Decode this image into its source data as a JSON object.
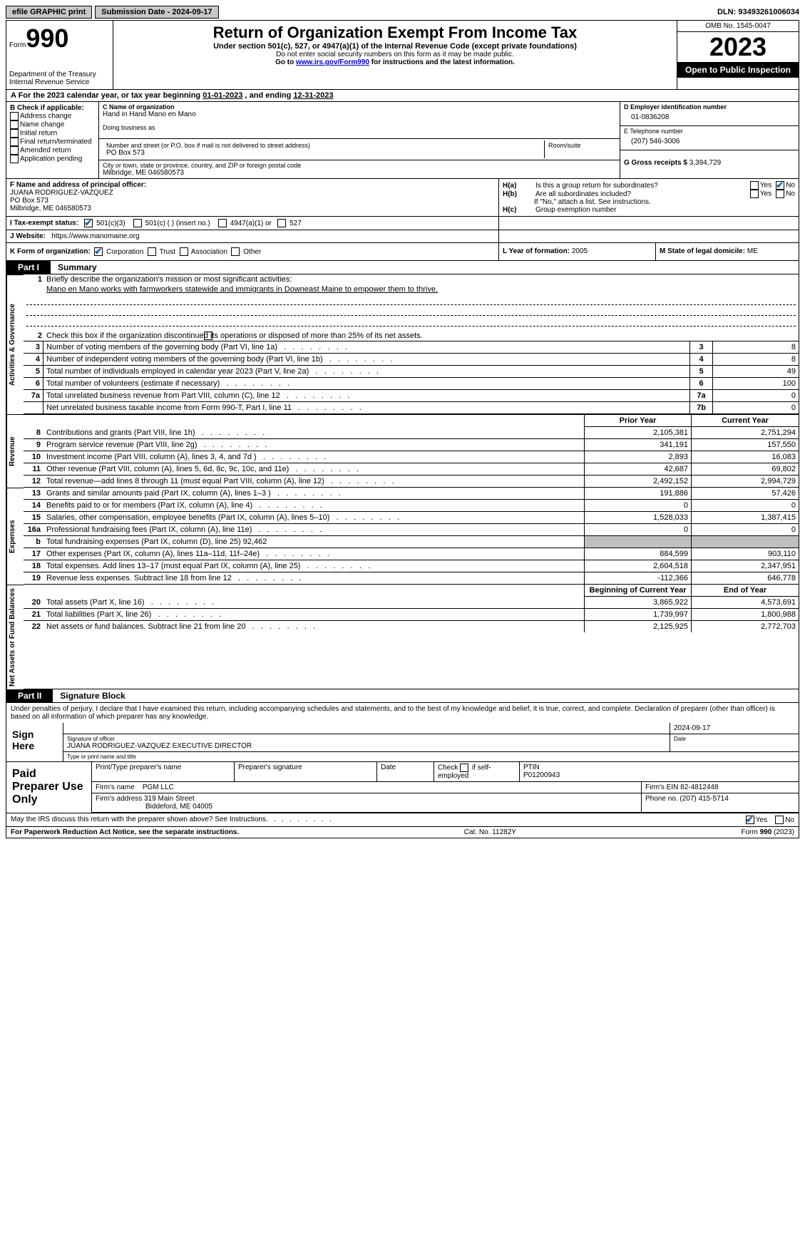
{
  "topbar": {
    "efile": "efile GRAPHIC print",
    "submission_label": "Submission Date - ",
    "submission_date": "2024-09-17",
    "dln_label": "DLN: ",
    "dln": "93493261006034"
  },
  "header": {
    "form_word": "Form",
    "form_number": "990",
    "dept": "Department of the Treasury",
    "irs": "Internal Revenue Service",
    "title": "Return of Organization Exempt From Income Tax",
    "subtitle": "Under section 501(c), 527, or 4947(a)(1) of the Internal Revenue Code (except private foundations)",
    "warn": "Do not enter social security numbers on this form as it may be made public.",
    "goto": "Go to ",
    "url": "www.irs.gov/Form990",
    "goto_rest": " for instructions and the latest information.",
    "omb": "OMB No. 1545-0047",
    "year": "2023",
    "inspection": "Open to Public Inspection"
  },
  "row_a": {
    "label": "A  For the 2023 calendar year, or tax year beginning ",
    "begin": "01-01-2023",
    "mid": "   , and ending ",
    "end": "12-31-2023"
  },
  "boxB": {
    "header": "B Check if applicable:",
    "items": [
      "Address change",
      "Name change",
      "Initial return",
      "Final return/terminated",
      "Amended return",
      "Application pending"
    ]
  },
  "boxC": {
    "name_label": "C Name of organization",
    "name": "Hand in Hand Mano en Mano",
    "dba_label": "Doing business as",
    "addr_label": "Number and street (or P.O. box if mail is not delivered to street address)",
    "addr": "PO Box 573",
    "room_label": "Room/suite",
    "city_label": "City or town, state or province, country, and ZIP or foreign postal code",
    "city": "Milbridge, ME  046580573"
  },
  "boxD": {
    "ein_label": "D Employer identification number",
    "ein": "01-0836208",
    "tel_label": "E Telephone number",
    "tel": "(207) 546-3006",
    "gross_label": "G Gross receipts $ ",
    "gross": "3,394,729"
  },
  "boxF": {
    "label": "F  Name and address of principal officer:",
    "name": "JUANA RODRIGUEZ-VAZQUEZ",
    "addr1": "PO Box 573",
    "addr2": "Milbridge, ME  046580573"
  },
  "boxH": {
    "a_label": "H(a)",
    "a_text": "Is this a group return for subordinates?",
    "b_label": "H(b)",
    "b_text": "Are all subordinates included?",
    "b_note": "If \"No,\" attach a list. See instructions.",
    "c_label": "H(c)",
    "c_text": "Group exemption number",
    "yes": "Yes",
    "no": "No"
  },
  "boxI": {
    "label": "I     Tax-exempt status:",
    "o1": "501(c)(3)",
    "o2": "501(c) (  ) (insert no.)",
    "o3": "4947(a)(1) or",
    "o4": "527"
  },
  "boxJ": {
    "label": "J    Website:",
    "url": "https://www.manomaine.org"
  },
  "boxK": {
    "label": "K Form of organization:",
    "o1": "Corporation",
    "o2": "Trust",
    "o3": "Association",
    "o4": "Other"
  },
  "boxL": {
    "label": "L Year of formation: ",
    "value": "2005"
  },
  "boxM": {
    "label": "M State of legal domicile: ",
    "value": "ME"
  },
  "part1": {
    "tab": "Part I",
    "title": "Summary",
    "sections": {
      "gov": "Activities & Governance",
      "rev": "Revenue",
      "exp": "Expenses",
      "net": "Net Assets or Fund Balances"
    },
    "q1_label": "Briefly describe the organization's mission or most significant activities:",
    "mission": "Mano en Mano works with farmworkers statewide and immigrants in Downeast Maine to empower them to thrive.",
    "q2": "Check this box         if the organization discontinued its operations or disposed of more than 25% of its net assets.",
    "gov_rows": [
      {
        "n": "3",
        "t": "Number of voting members of the governing body (Part VI, line 1a)",
        "idx": "3",
        "v": "8"
      },
      {
        "n": "4",
        "t": "Number of independent voting members of the governing body (Part VI, line 1b)",
        "idx": "4",
        "v": "8"
      },
      {
        "n": "5",
        "t": "Total number of individuals employed in calendar year 2023 (Part V, line 2a)",
        "idx": "5",
        "v": "49"
      },
      {
        "n": "6",
        "t": "Total number of volunteers (estimate if necessary)",
        "idx": "6",
        "v": "100"
      },
      {
        "n": "7a",
        "t": "Total unrelated business revenue from Part VIII, column (C), line 12",
        "idx": "7a",
        "v": "0"
      },
      {
        "n": "",
        "t": "Net unrelated business taxable income from Form 990-T, Part I, line 11",
        "idx": "7b",
        "v": "0"
      }
    ],
    "rev_hdr": [
      "Prior Year",
      "Current Year"
    ],
    "rev_rows": [
      {
        "n": "8",
        "t": "Contributions and grants (Part VIII, line 1h)",
        "p": "2,105,381",
        "c": "2,751,294"
      },
      {
        "n": "9",
        "t": "Program service revenue (Part VIII, line 2g)",
        "p": "341,191",
        "c": "157,550"
      },
      {
        "n": "10",
        "t": "Investment income (Part VIII, column (A), lines 3, 4, and 7d )",
        "p": "2,893",
        "c": "16,083"
      },
      {
        "n": "11",
        "t": "Other revenue (Part VIII, column (A), lines 5, 6d, 8c, 9c, 10c, and 11e)",
        "p": "42,687",
        "c": "69,802"
      },
      {
        "n": "12",
        "t": "Total revenue—add lines 8 through 11 (must equal Part VIII, column (A), line 12)",
        "p": "2,492,152",
        "c": "2,994,729"
      }
    ],
    "exp_rows": [
      {
        "n": "13",
        "t": "Grants and similar amounts paid (Part IX, column (A), lines 1–3 )",
        "p": "191,886",
        "c": "57,426"
      },
      {
        "n": "14",
        "t": "Benefits paid to or for members (Part IX, column (A), line 4)",
        "p": "0",
        "c": "0"
      },
      {
        "n": "15",
        "t": "Salaries, other compensation, employee benefits (Part IX, column (A), lines 5–10)",
        "p": "1,528,033",
        "c": "1,387,415"
      },
      {
        "n": "16a",
        "t": "Professional fundraising fees (Part IX, column (A), line 11e)",
        "p": "0",
        "c": "0"
      },
      {
        "n": "b",
        "t": "Total fundraising expenses (Part IX, column (D), line 25) 92,462",
        "p": "",
        "c": "",
        "shade": true
      },
      {
        "n": "17",
        "t": "Other expenses (Part IX, column (A), lines 11a–11d, 11f–24e)",
        "p": "884,599",
        "c": "903,110"
      },
      {
        "n": "18",
        "t": "Total expenses. Add lines 13–17 (must equal Part IX, column (A), line 25)",
        "p": "2,604,518",
        "c": "2,347,951"
      },
      {
        "n": "19",
        "t": "Revenue less expenses. Subtract line 18 from line 12",
        "p": "-112,366",
        "c": "646,778"
      }
    ],
    "net_hdr": [
      "Beginning of Current Year",
      "End of Year"
    ],
    "net_rows": [
      {
        "n": "20",
        "t": "Total assets (Part X, line 16)",
        "p": "3,865,922",
        "c": "4,573,691"
      },
      {
        "n": "21",
        "t": "Total liabilities (Part X, line 26)",
        "p": "1,739,997",
        "c": "1,800,988"
      },
      {
        "n": "22",
        "t": "Net assets or fund balances. Subtract line 21 from line 20",
        "p": "2,125,925",
        "c": "2,772,703"
      }
    ]
  },
  "part2": {
    "tab": "Part II",
    "title": "Signature Block",
    "declaration": "Under penalties of perjury, I declare that I have examined this return, including accompanying schedules and statements, and to the best of my knowledge and belief, it is true, correct, and complete. Declaration of preparer (other than officer) is based on all information of which preparer has any knowledge."
  },
  "sign": {
    "left": "Sign Here",
    "date": "2024-09-17",
    "sig_label": "Signature of officer",
    "name": "JUANA RODRIGUEZ-VAZQUEZ  EXECUTIVE DIRECTOR",
    "name_label": "Type or print name and title",
    "date_label": "Date"
  },
  "prep": {
    "left": "Paid Preparer Use Only",
    "h1": "Print/Type preparer's name",
    "h2": "Preparer's signature",
    "h3": "Date",
    "h4_a": "Check",
    "h4_b": "if self-employed",
    "h5": "PTIN",
    "ptin": "P01200943",
    "firm_label": "Firm's name",
    "firm": "PGM LLC",
    "firm_ein_label": "Firm's EIN",
    "firm_ein": "82-4812448",
    "addr_label": "Firm's address",
    "addr1": "319 Main Street",
    "addr2": "Biddeford, ME  04005",
    "phone_label": "Phone no.",
    "phone": "(207) 415-5714"
  },
  "discuss": {
    "text": "May the IRS discuss this return with the preparer shown above? See Instructions.",
    "yes": "Yes",
    "no": "No"
  },
  "footer": {
    "left": "For Paperwork Reduction Act Notice, see the separate instructions.",
    "mid": "Cat. No. 11282Y",
    "right_a": "Form ",
    "right_b": "990",
    "right_c": " (2023)"
  }
}
